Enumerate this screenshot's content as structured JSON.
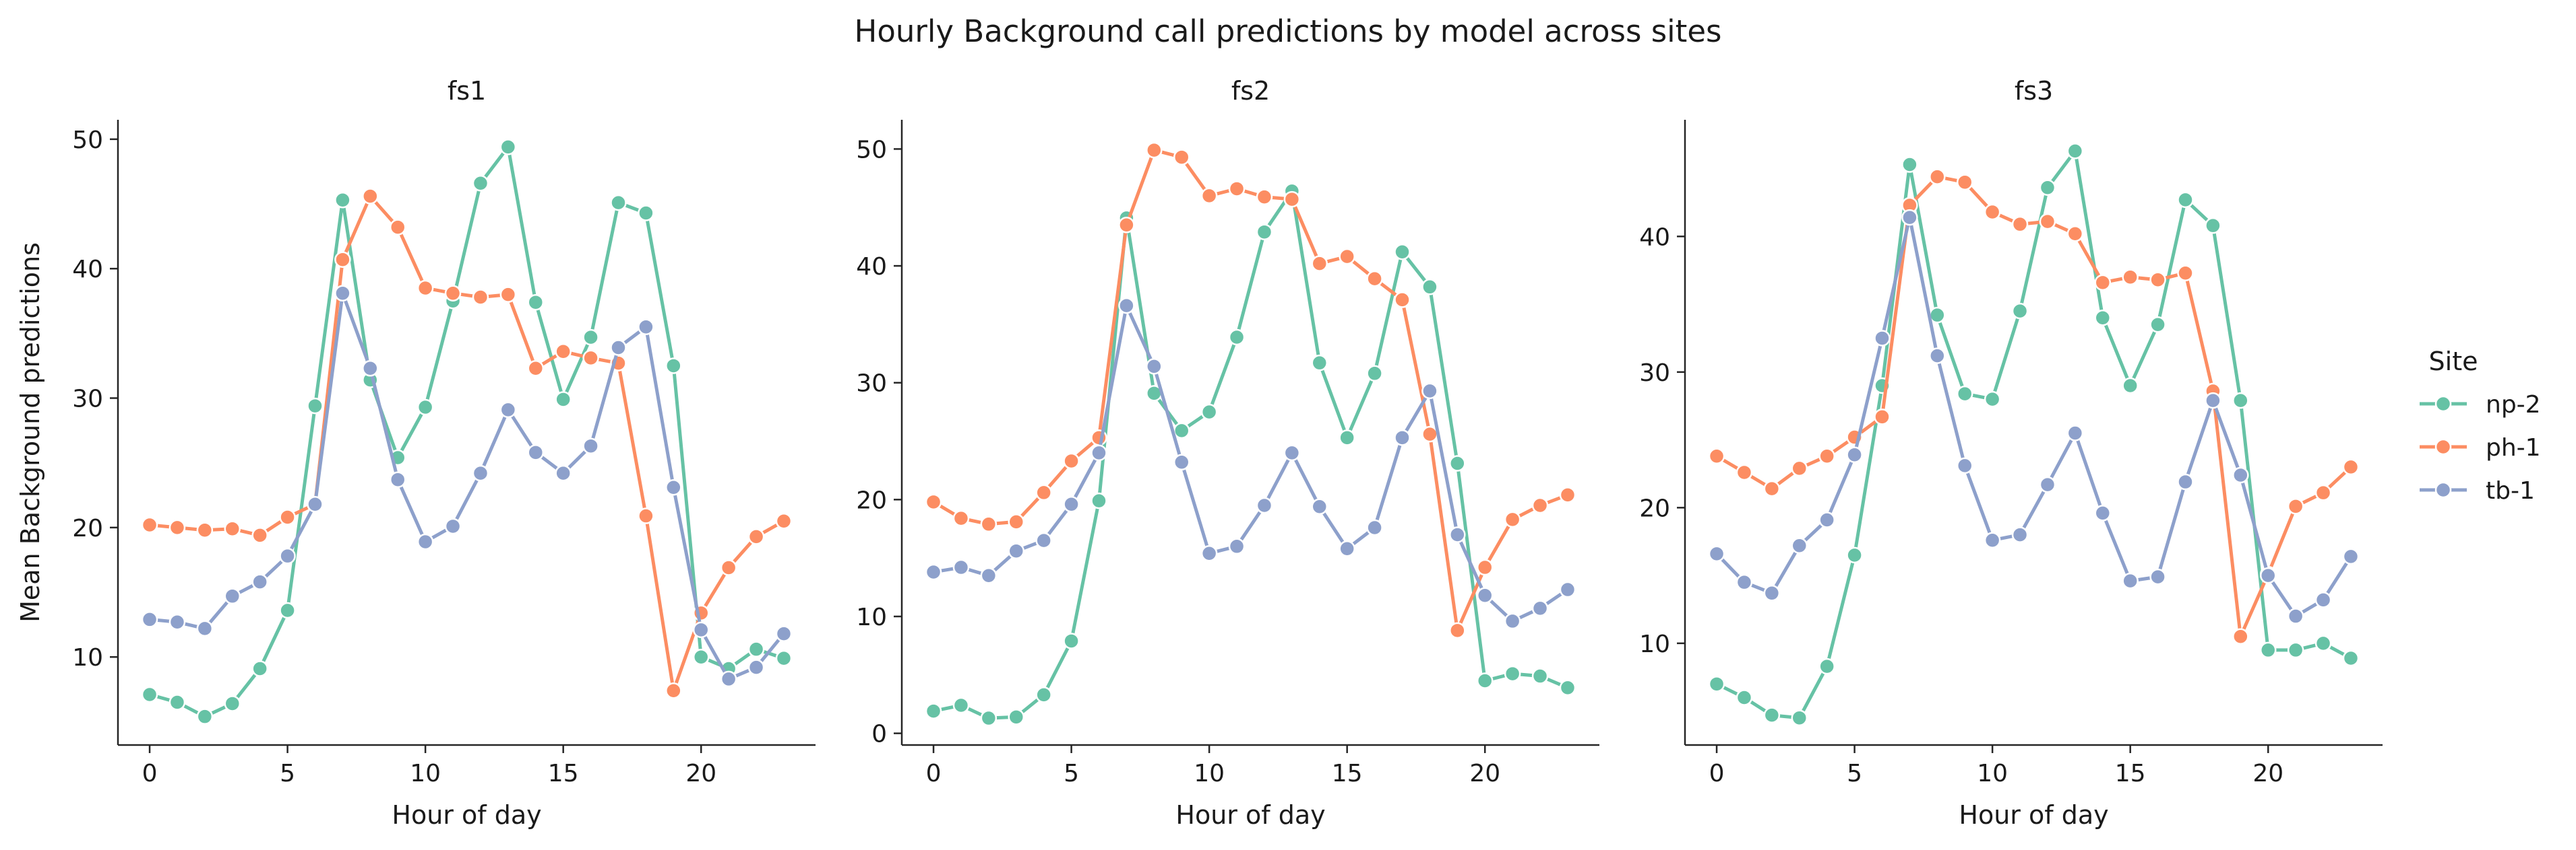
{
  "figure": {
    "title": "Hourly Background call predictions by model across sites"
  },
  "legend": {
    "title": "Site",
    "placement": "right",
    "entries": [
      {
        "label": "np-2",
        "color": "#66c2a5"
      },
      {
        "label": "ph-1",
        "color": "#fc8d62"
      },
      {
        "label": "tb-1",
        "color": "#8da0cb"
      }
    ]
  },
  "chart_data": [
    {
      "type": "line",
      "title": "fs1",
      "xlabel": "Hour of day",
      "ylabel": "Mean Background predictions",
      "x": [
        0,
        1,
        2,
        3,
        4,
        5,
        6,
        7,
        8,
        9,
        10,
        11,
        12,
        13,
        14,
        15,
        16,
        17,
        18,
        19,
        20,
        21,
        22,
        23
      ],
      "xlim": [
        -1.15,
        24.15
      ],
      "ylim": [
        3.2,
        51.5
      ],
      "xticks": [
        0,
        5,
        10,
        15,
        20
      ],
      "yticks": [
        10,
        20,
        30,
        40,
        50
      ],
      "grid": false,
      "series": [
        {
          "name": "np-2",
          "color": "#66c2a5",
          "values": [
            7.1,
            6.5,
            5.4,
            6.4,
            9.1,
            13.6,
            29.4,
            45.3,
            31.4,
            25.4,
            29.3,
            37.5,
            46.6,
            49.4,
            37.4,
            29.9,
            34.7,
            45.1,
            44.3,
            32.5,
            10.0,
            9.1,
            10.6,
            9.9
          ]
        },
        {
          "name": "ph-1",
          "color": "#fc8d62",
          "values": [
            20.2,
            20.0,
            19.8,
            19.9,
            19.4,
            20.8,
            21.8,
            40.7,
            45.6,
            43.2,
            38.5,
            38.1,
            37.8,
            38.0,
            32.3,
            33.6,
            33.1,
            32.7,
            20.9,
            7.4,
            13.4,
            16.9,
            19.3,
            20.5
          ]
        },
        {
          "name": "tb-1",
          "color": "#8da0cb",
          "values": [
            12.9,
            12.7,
            12.2,
            14.7,
            15.8,
            17.8,
            21.8,
            38.1,
            32.3,
            23.7,
            18.9,
            20.1,
            24.2,
            29.1,
            25.8,
            24.2,
            26.3,
            33.9,
            35.5,
            23.1,
            12.1,
            8.3,
            9.2,
            11.8
          ]
        }
      ]
    },
    {
      "type": "line",
      "title": "fs2",
      "xlabel": "Hour of day",
      "ylabel": "",
      "x": [
        0,
        1,
        2,
        3,
        4,
        5,
        6,
        7,
        8,
        9,
        10,
        11,
        12,
        13,
        14,
        15,
        16,
        17,
        18,
        19,
        20,
        21,
        22,
        23
      ],
      "xlim": [
        -1.15,
        24.15
      ],
      "ylim": [
        -1.0,
        52.5
      ],
      "xticks": [
        0,
        5,
        10,
        15,
        20
      ],
      "yticks": [
        0,
        10,
        20,
        30,
        40,
        50
      ],
      "grid": false,
      "series": [
        {
          "name": "np-2",
          "color": "#66c2a5",
          "values": [
            1.9,
            2.4,
            1.3,
            1.4,
            3.3,
            7.9,
            19.9,
            44.1,
            29.1,
            25.9,
            27.5,
            33.9,
            42.9,
            46.4,
            31.7,
            25.3,
            30.8,
            41.2,
            38.2,
            23.1,
            4.5,
            5.1,
            4.9,
            3.9
          ]
        },
        {
          "name": "ph-1",
          "color": "#fc8d62",
          "values": [
            19.8,
            18.4,
            17.9,
            18.1,
            20.6,
            23.3,
            25.3,
            43.5,
            49.9,
            49.3,
            46.0,
            46.6,
            45.9,
            45.7,
            40.2,
            40.8,
            38.9,
            37.1,
            25.6,
            8.8,
            14.2,
            18.3,
            19.5,
            20.4
          ]
        },
        {
          "name": "tb-1",
          "color": "#8da0cb",
          "values": [
            13.8,
            14.2,
            13.5,
            15.6,
            16.5,
            19.6,
            24.0,
            36.6,
            31.4,
            23.2,
            15.4,
            16.0,
            19.5,
            24.0,
            19.4,
            15.8,
            17.6,
            25.3,
            29.3,
            17.0,
            11.8,
            9.6,
            10.7,
            12.3
          ]
        }
      ]
    },
    {
      "type": "line",
      "title": "fs3",
      "xlabel": "Hour of day",
      "ylabel": "",
      "x": [
        0,
        1,
        2,
        3,
        4,
        5,
        6,
        7,
        8,
        9,
        10,
        11,
        12,
        13,
        14,
        15,
        16,
        17,
        18,
        19,
        20,
        21,
        22,
        23
      ],
      "xlim": [
        -1.15,
        24.15
      ],
      "ylim": [
        2.5,
        48.6
      ],
      "xticks": [
        0,
        5,
        10,
        15,
        20
      ],
      "yticks": [
        10,
        20,
        30,
        40
      ],
      "grid": false,
      "series": [
        {
          "name": "np-2",
          "color": "#66c2a5",
          "values": [
            7.0,
            6.0,
            4.7,
            4.5,
            8.3,
            16.5,
            29.0,
            45.3,
            34.2,
            28.4,
            28.0,
            34.5,
            43.6,
            46.3,
            34.0,
            29.0,
            33.5,
            42.7,
            40.8,
            27.9,
            9.5,
            9.5,
            10.0,
            8.9
          ]
        },
        {
          "name": "ph-1",
          "color": "#fc8d62",
          "values": [
            23.8,
            22.6,
            21.4,
            22.9,
            23.8,
            25.2,
            26.7,
            42.3,
            44.4,
            44.0,
            41.8,
            40.9,
            41.1,
            40.2,
            36.6,
            37.0,
            36.8,
            37.3,
            28.6,
            10.5,
            15.1,
            20.1,
            21.1,
            23.0
          ]
        },
        {
          "name": "tb-1",
          "color": "#8da0cb",
          "values": [
            16.6,
            14.5,
            13.7,
            17.2,
            19.1,
            23.9,
            32.5,
            41.4,
            31.2,
            23.1,
            17.6,
            18.0,
            21.7,
            25.5,
            19.6,
            14.6,
            14.9,
            21.9,
            27.9,
            22.4,
            15.0,
            12.0,
            13.2,
            16.4
          ]
        }
      ]
    }
  ]
}
